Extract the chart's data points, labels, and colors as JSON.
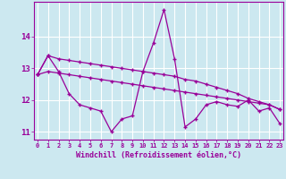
{
  "xlabel": "Windchill (Refroidissement éolien,°C)",
  "background_color": "#cce8f0",
  "grid_color": "#ffffff",
  "line_color": "#990099",
  "hours": [
    0,
    1,
    2,
    3,
    4,
    5,
    6,
    7,
    8,
    9,
    10,
    11,
    12,
    13,
    14,
    15,
    16,
    17,
    18,
    19,
    20,
    21,
    22,
    23
  ],
  "y_upper": [
    12.8,
    13.4,
    13.3,
    13.25,
    13.2,
    13.15,
    13.1,
    13.05,
    13.0,
    12.95,
    12.9,
    12.85,
    12.8,
    12.75,
    12.65,
    12.6,
    12.5,
    12.4,
    12.3,
    12.2,
    12.05,
    11.95,
    11.85,
    11.7
  ],
  "y_middle": [
    12.8,
    12.9,
    12.85,
    12.8,
    12.75,
    12.7,
    12.65,
    12.6,
    12.55,
    12.5,
    12.45,
    12.4,
    12.35,
    12.3,
    12.25,
    12.2,
    12.15,
    12.1,
    12.05,
    12.0,
    11.95,
    11.9,
    11.85,
    11.7
  ],
  "y_zigzag": [
    12.8,
    13.4,
    12.9,
    12.2,
    11.85,
    11.75,
    11.65,
    11.0,
    11.4,
    11.5,
    12.9,
    13.8,
    14.85,
    13.3,
    11.15,
    11.4,
    11.85,
    11.95,
    11.85,
    11.8,
    12.0,
    11.65,
    11.75,
    11.25
  ],
  "ylim": [
    10.75,
    15.1
  ],
  "yticks": [
    11,
    12,
    13,
    14
  ],
  "xlim": [
    -0.3,
    23.3
  ],
  "figsize": [
    3.2,
    2.0
  ],
  "dpi": 100
}
